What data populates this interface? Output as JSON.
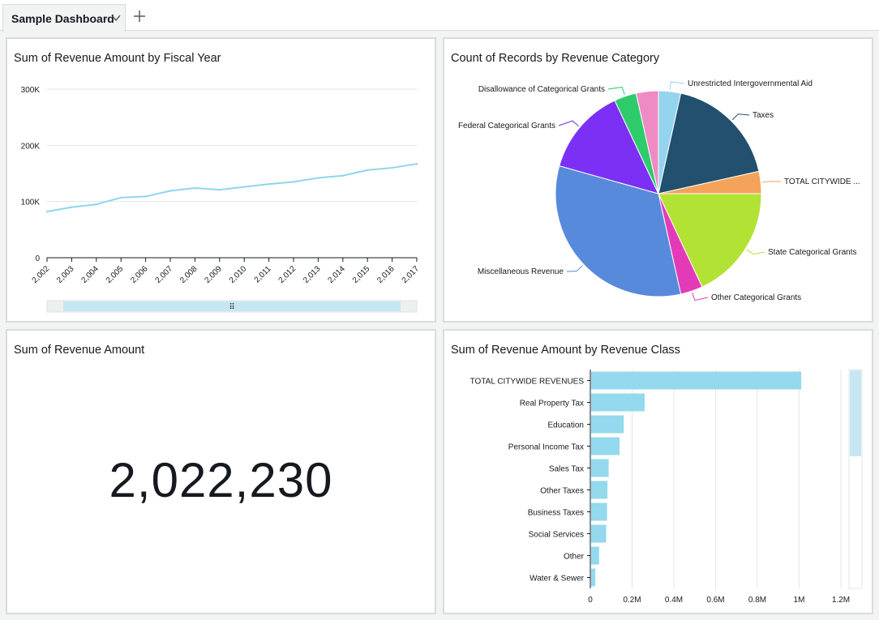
{
  "tab": {
    "label": "Sample Dashboard"
  },
  "panels": {
    "line": {
      "title": "Sum of Revenue Amount by Fiscal Year"
    },
    "pie": {
      "title": "Count of Records by Revenue Category"
    },
    "kpi": {
      "title": "Sum of Revenue Amount",
      "value": "2,022,230"
    },
    "bar": {
      "title": "Sum of Revenue Amount by Revenue Class"
    }
  },
  "chart_data": [
    {
      "type": "line",
      "title": "Sum of Revenue Amount by Fiscal Year",
      "x": [
        "2,002",
        "2,003",
        "2,004",
        "2,005",
        "2,006",
        "2,007",
        "2,008",
        "2,009",
        "2,010",
        "2,011",
        "2,012",
        "2,013",
        "2,014",
        "2,015",
        "2,016",
        "2,017"
      ],
      "values": [
        82000,
        90000,
        95000,
        107000,
        109000,
        119000,
        124000,
        121000,
        126000,
        131000,
        135000,
        142000,
        146000,
        156000,
        160000,
        167000
      ],
      "yticks": [
        "0",
        "100K",
        "200K",
        "300K"
      ],
      "ylim": [
        0,
        300000
      ],
      "color": "#8fd6ec",
      "grid": true
    },
    {
      "type": "pie",
      "title": "Count of Records by Revenue Category",
      "slices": [
        {
          "name": "Unrestricted Intergovernmental Aid",
          "value": 3.6,
          "color": "#94d4ee"
        },
        {
          "name": "Taxes",
          "value": 18.6,
          "color": "#22506e"
        },
        {
          "name": "TOTAL CITYWIDE ...",
          "value": 3.6,
          "color": "#f4a35a"
        },
        {
          "name": "State Categorical Grants",
          "value": 18.6,
          "color": "#b2e234"
        },
        {
          "name": "Other Categorical Grants",
          "value": 3.6,
          "color": "#e33ab8"
        },
        {
          "name": "Miscellaneous Revenue",
          "value": 33.9,
          "color": "#578adb"
        },
        {
          "name": "Federal Categorical Grants",
          "value": 14.1,
          "color": "#7c30f5"
        },
        {
          "name": "Disallowance of Categorical Grants",
          "value": 3.6,
          "color": "#2ecb6b"
        },
        {
          "name": "",
          "value": 3.6,
          "color": "#ef8ac4"
        }
      ]
    },
    {
      "type": "bar",
      "orientation": "horizontal",
      "title": "Sum of Revenue Amount by Revenue Class",
      "categories": [
        "TOTAL CITYWIDE REVENUES",
        "Real Property Tax",
        "Education",
        "Personal Income Tax",
        "Sales Tax",
        "Other Taxes",
        "Business Taxes",
        "Social Services",
        "Other",
        "Water & Sewer"
      ],
      "values": [
        1010000,
        260000,
        160000,
        140000,
        88000,
        82000,
        80000,
        76000,
        42000,
        24000
      ],
      "xticks": [
        "0",
        "0.2M",
        "0.4M",
        "0.6M",
        "0.8M",
        "1M",
        "1.2M"
      ],
      "xlim": [
        0,
        1200000
      ],
      "color": "#94d9ed",
      "grid": true
    }
  ]
}
